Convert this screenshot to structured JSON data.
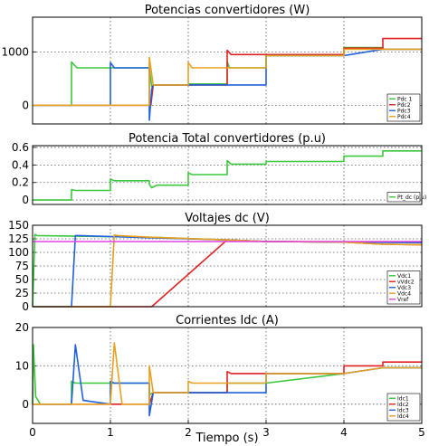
{
  "chart_data": [
    {
      "type": "line",
      "title": "Potencias convertidores (W)",
      "xlim": [
        0,
        5
      ],
      "ylim": [
        -350,
        1650
      ],
      "yticks": [
        0,
        1000
      ],
      "grid": true,
      "legend": "bottom-right",
      "series": [
        {
          "name": "Pdc 1",
          "color": "#3cc83c",
          "x": [
            0,
            0.5,
            0.5,
            0.57,
            1.5,
            1.53,
            1.55,
            2.0,
            2.0,
            2.5,
            2.5,
            2.53,
            3.0,
            3.0,
            4.0,
            4.0,
            4.5,
            4.5,
            5.0
          ],
          "y": [
            0,
            0,
            810,
            700,
            700,
            350,
            380,
            380,
            400,
            400,
            820,
            700,
            700,
            930,
            930,
            1080,
            1080,
            1050,
            1050
          ]
        },
        {
          "name": "Pdc2",
          "color": "#e02020",
          "x": [
            0,
            1.52,
            1.55,
            2.0,
            2.5,
            2.5,
            2.55,
            3.0,
            3.0,
            4.0,
            4.0,
            4.5,
            4.5,
            5.0
          ],
          "y": [
            0,
            0,
            380,
            380,
            380,
            1030,
            950,
            950,
            950,
            950,
            1070,
            1070,
            1250,
            1250
          ]
        },
        {
          "name": "Pdc3",
          "color": "#2060e0",
          "x": [
            0,
            1.0,
            1.0,
            1.05,
            1.5,
            1.5,
            1.53,
            1.55,
            2.0,
            2.5,
            3.0,
            3.0,
            4.0,
            4.5,
            5.0
          ],
          "y": [
            0,
            0,
            800,
            700,
            700,
            -280,
            300,
            380,
            380,
            380,
            380,
            930,
            930,
            1050,
            1050
          ]
        },
        {
          "name": "Pdc4",
          "color": "#e8a020",
          "x": [
            0,
            1.5,
            1.5,
            1.55,
            2.0,
            2.0,
            2.05,
            2.5,
            3.0,
            3.0,
            4.0,
            4.0,
            4.5,
            5.0
          ],
          "y": [
            0,
            0,
            900,
            380,
            380,
            800,
            700,
            700,
            700,
            930,
            930,
            1050,
            1050,
            1050
          ]
        }
      ]
    },
    {
      "type": "line",
      "title": "Potencia Total convertidores (p.u)",
      "xlim": [
        0,
        5
      ],
      "ylim": [
        -0.05,
        0.62
      ],
      "yticks": [
        0,
        0.2,
        0.4,
        0.6
      ],
      "grid": true,
      "legend": "bottom-right",
      "series": [
        {
          "name": "Pt_dc (p.u)",
          "color": "#3cc83c",
          "x": [
            0,
            0.5,
            0.5,
            0.55,
            1.0,
            1.0,
            1.05,
            1.5,
            1.5,
            1.53,
            1.6,
            2.0,
            2.0,
            2.05,
            2.5,
            2.5,
            2.55,
            3.0,
            3.0,
            4.0,
            4.0,
            4.5,
            4.5,
            5.0
          ],
          "y": [
            0,
            0,
            0.12,
            0.11,
            0.11,
            0.24,
            0.22,
            0.22,
            0.18,
            0.14,
            0.17,
            0.17,
            0.31,
            0.29,
            0.29,
            0.45,
            0.41,
            0.41,
            0.44,
            0.44,
            0.5,
            0.5,
            0.56,
            0.56
          ]
        }
      ]
    },
    {
      "type": "line",
      "title": "Voltajes dc (V)",
      "xlim": [
        0,
        5
      ],
      "ylim": [
        0,
        150
      ],
      "yticks": [
        0,
        25,
        50,
        75,
        100,
        125,
        150
      ],
      "grid": true,
      "legend": "bottom-right",
      "series": [
        {
          "name": "Vdc1",
          "color": "#3cc83c",
          "x": [
            0,
            0.03,
            0.06,
            1.5,
            2.5,
            3.0,
            4.0,
            5.0
          ],
          "y": [
            0,
            133,
            131,
            128,
            123,
            120,
            119,
            118
          ]
        },
        {
          "name": "vVdc2",
          "color": "#e02020",
          "x": [
            0,
            1.5,
            1.5,
            1.53,
            2.5,
            3.0,
            4.0,
            4.5,
            5.0
          ],
          "y": [
            0,
            0,
            0,
            0,
            123,
            120,
            119,
            115,
            114
          ]
        },
        {
          "name": "Vdc3",
          "color": "#2060e0",
          "x": [
            0,
            0.5,
            0.5,
            0.55,
            0.6,
            1.5,
            2.5,
            3.0,
            4.0,
            5.0
          ],
          "y": [
            0,
            0,
            0,
            131,
            131,
            127,
            123,
            120,
            119,
            118
          ]
        },
        {
          "name": "Vdc4",
          "color": "#e8a020",
          "x": [
            0,
            1.0,
            1.0,
            1.05,
            1.1,
            1.5,
            2.5,
            3.0,
            4.0,
            4.5,
            5.0
          ],
          "y": [
            0,
            0,
            0,
            132,
            131,
            128,
            123,
            120,
            119,
            115,
            114
          ]
        },
        {
          "name": "Vref",
          "color": "#e040e0",
          "x": [
            0,
            5.0
          ],
          "y": [
            120,
            120
          ]
        }
      ]
    },
    {
      "type": "line",
      "title": "Corrientes Idc (A)",
      "xlabel": "Tiempo (s)",
      "xlim": [
        0,
        5
      ],
      "ylim": [
        -5,
        20
      ],
      "yticks": [
        0,
        10,
        20
      ],
      "xticks": [
        0,
        1,
        2,
        3,
        4,
        5
      ],
      "grid": true,
      "legend": "bottom-right",
      "series": [
        {
          "name": "Idc1",
          "color": "#3cc83c",
          "x": [
            0,
            0.01,
            0.04,
            0.1,
            0.5,
            0.5,
            0.55,
            1.5,
            1.5,
            1.55,
            2.0,
            2.5,
            2.5,
            3.0,
            4.0,
            4.5,
            5.0
          ],
          "y": [
            0,
            15.5,
            2,
            0,
            0,
            6,
            5.5,
            5.5,
            2.5,
            3,
            3,
            3,
            5.5,
            5.5,
            8,
            9.5,
            9.5
          ]
        },
        {
          "name": "Idc2",
          "color": "#e02020",
          "x": [
            0,
            1.5,
            1.55,
            2.0,
            2.5,
            2.5,
            2.55,
            3.0,
            4.0,
            4.0,
            4.5,
            4.5,
            5.0
          ],
          "y": [
            0,
            0,
            3,
            3,
            3,
            8.5,
            8,
            8,
            8,
            10,
            10,
            11,
            11
          ]
        },
        {
          "name": "Idc3",
          "color": "#2060e0",
          "x": [
            0,
            0.5,
            0.5,
            0.55,
            0.65,
            1.0,
            1.0,
            1.05,
            1.5,
            1.5,
            1.55,
            2.0,
            2.5,
            3.0,
            3.0,
            4.0,
            4.5,
            5.0
          ],
          "y": [
            0,
            0,
            0,
            15.5,
            1,
            0,
            6,
            5.5,
            5.5,
            -3,
            3,
            3,
            3,
            3,
            8,
            8,
            9.5,
            9.5
          ]
        },
        {
          "name": "Idc4",
          "color": "#e8a020",
          "x": [
            0,
            1.0,
            1.0,
            1.05,
            1.15,
            1.5,
            1.5,
            1.55,
            2.0,
            2.0,
            2.05,
            2.5,
            3.0,
            3.0,
            4.0,
            4.5,
            5.0
          ],
          "y": [
            0,
            0,
            0,
            16,
            0,
            0,
            10,
            3,
            3,
            6,
            5.5,
            5.5,
            5.5,
            8,
            8,
            9.5,
            9.5
          ]
        }
      ]
    }
  ]
}
